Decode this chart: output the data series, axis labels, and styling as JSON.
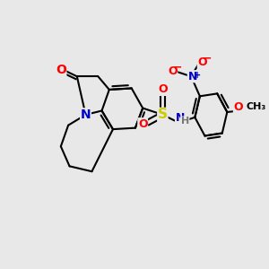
{
  "bg_color": "#e8e8e8",
  "bond_color": "#000000",
  "bond_width": 1.5,
  "atom_colors": {
    "O": "#ff0000",
    "N": "#0000cc",
    "S": "#cccc00",
    "H": "#777777",
    "C": "#000000",
    "N_plus": "#0000cc",
    "O_minus": "#ff0000"
  },
  "font_size": 9,
  "fig_size": [
    3.0,
    3.0
  ],
  "dpi": 100
}
